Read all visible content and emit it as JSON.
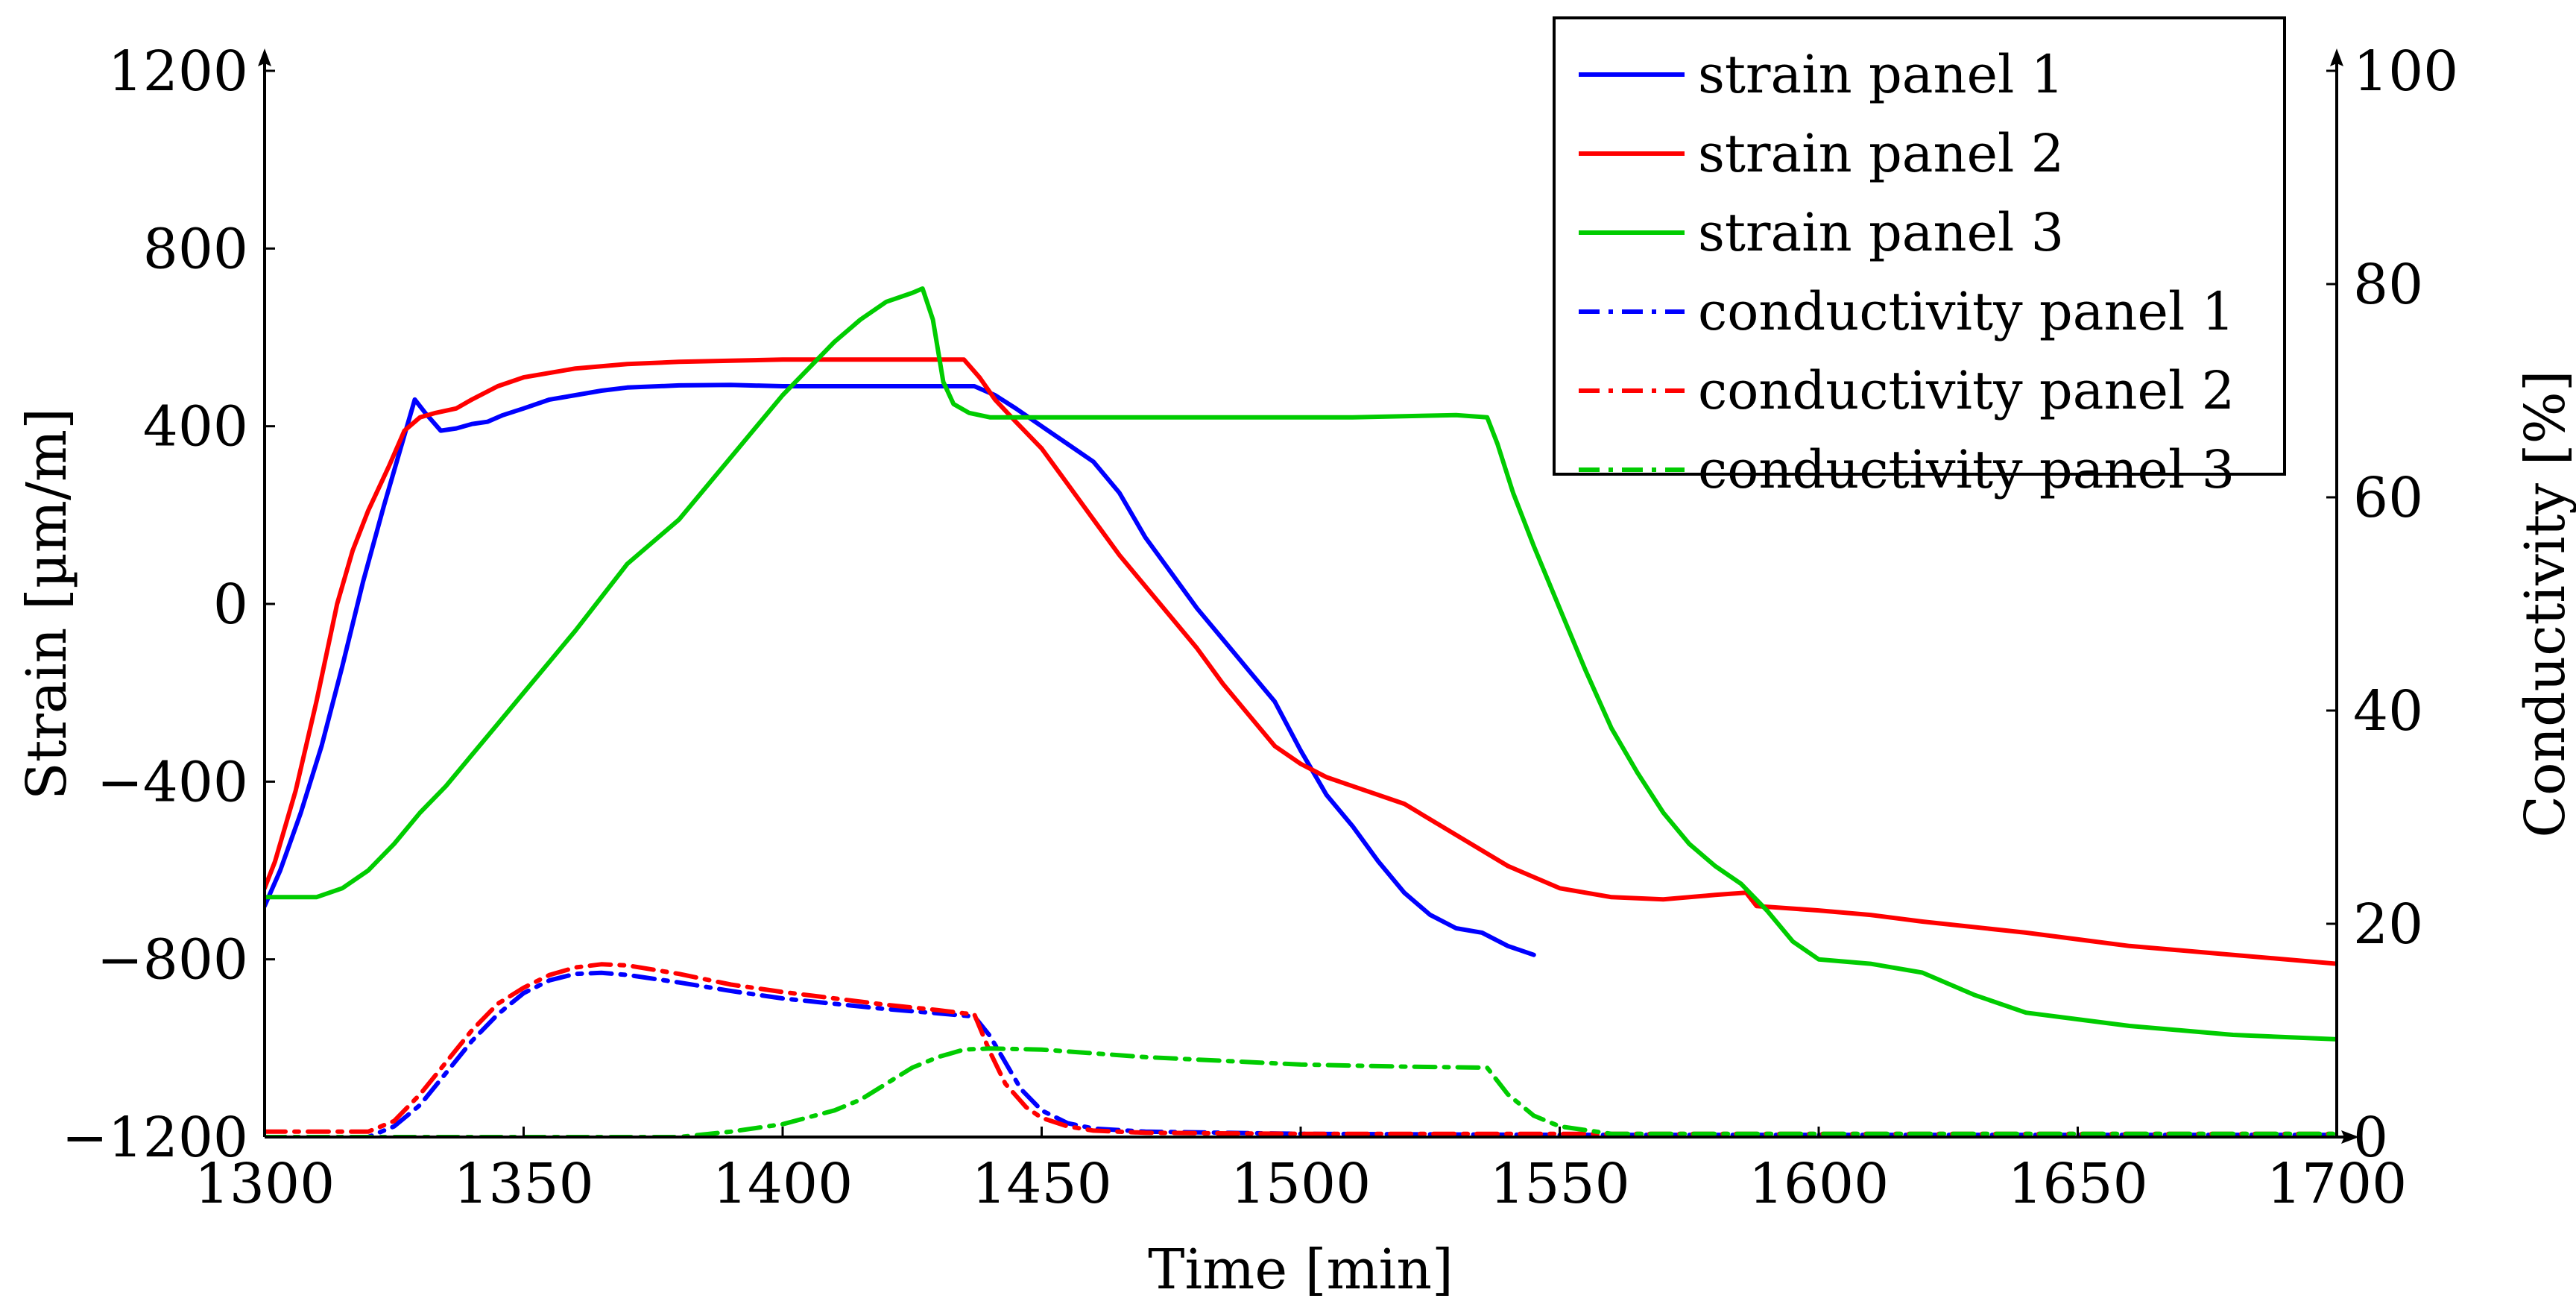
{
  "chart_data": {
    "type": "line",
    "title": "",
    "xlabel": "Time [min]",
    "ylabel": "Strain [µm/m]",
    "y2label": "Conductivity [%]",
    "xlim": [
      1300,
      1700
    ],
    "ylim": [
      -1200,
      1200
    ],
    "y2lim": [
      0,
      100
    ],
    "xticks": [
      1300,
      1350,
      1400,
      1450,
      1500,
      1550,
      1600,
      1650,
      1700
    ],
    "xtick_labels": [
      "1300",
      "1350",
      "1400",
      "1450",
      "1500",
      "1550",
      "1600",
      "1650",
      "1700"
    ],
    "yticks": [
      -1200,
      -800,
      -400,
      0,
      400,
      800,
      1200
    ],
    "ytick_labels": [
      "−1200",
      "−800",
      "−400",
      "0",
      "400",
      "800",
      "1200"
    ],
    "y2ticks": [
      0,
      20,
      40,
      60,
      80,
      100
    ],
    "y2tick_labels": [
      "0",
      "20",
      "40",
      "60",
      "80",
      "100"
    ],
    "legend_position": "top-right",
    "series": [
      {
        "name": "strain panel 1",
        "axis": "left",
        "color": "#0000ff",
        "style": "solid",
        "x": [
          1300,
          1303,
          1307,
          1311,
          1315,
          1319,
          1323,
          1326,
          1329,
          1331,
          1334,
          1337,
          1340,
          1343,
          1346,
          1350,
          1355,
          1360,
          1365,
          1370,
          1380,
          1390,
          1400,
          1410,
          1420,
          1430,
          1437,
          1441,
          1445,
          1450,
          1455,
          1460,
          1465,
          1470,
          1475,
          1480,
          1485,
          1490,
          1495,
          1500,
          1505,
          1510,
          1515,
          1520,
          1525,
          1530,
          1535,
          1540,
          1545
        ],
        "y": [
          -680,
          -600,
          -470,
          -320,
          -140,
          50,
          220,
          340,
          460,
          430,
          390,
          395,
          405,
          410,
          425,
          440,
          460,
          470,
          480,
          487,
          492,
          493,
          490,
          490,
          490,
          490,
          490,
          470,
          440,
          400,
          360,
          320,
          250,
          150,
          70,
          -10,
          -80,
          -150,
          -220,
          -330,
          -430,
          -500,
          -580,
          -650,
          -700,
          -730,
          -740,
          -770,
          -790
        ]
      },
      {
        "name": "strain panel 2",
        "axis": "left",
        "color": "#ff0000",
        "style": "solid",
        "x": [
          1300,
          1302,
          1306,
          1310,
          1314,
          1317,
          1320,
          1324,
          1327,
          1330,
          1333,
          1337,
          1340,
          1345,
          1350,
          1360,
          1370,
          1380,
          1400,
          1420,
          1435,
          1438,
          1441,
          1445,
          1450,
          1455,
          1460,
          1465,
          1470,
          1475,
          1480,
          1485,
          1490,
          1495,
          1500,
          1505,
          1510,
          1520,
          1530,
          1540,
          1550,
          1560,
          1570,
          1580,
          1586,
          1588,
          1600,
          1610,
          1620,
          1640,
          1660,
          1680,
          1700
        ],
        "y": [
          -640,
          -580,
          -420,
          -220,
          0,
          120,
          210,
          310,
          390,
          420,
          430,
          440,
          460,
          490,
          510,
          530,
          540,
          545,
          550,
          550,
          550,
          510,
          460,
          410,
          350,
          270,
          190,
          110,
          40,
          -30,
          -100,
          -180,
          -250,
          -320,
          -360,
          -390,
          -410,
          -450,
          -520,
          -590,
          -640,
          -660,
          -665,
          -655,
          -650,
          -680,
          -690,
          -700,
          -715,
          -740,
          -770,
          -790,
          -810
        ]
      },
      {
        "name": "strain panel 3",
        "axis": "left",
        "color": "#00cc00",
        "style": "solid",
        "x": [
          1300,
          1310,
          1315,
          1320,
          1325,
          1330,
          1335,
          1340,
          1345,
          1350,
          1355,
          1360,
          1370,
          1380,
          1390,
          1400,
          1410,
          1415,
          1420,
          1425,
          1427,
          1429,
          1431,
          1433,
          1436,
          1440,
          1450,
          1470,
          1490,
          1510,
          1530,
          1536,
          1538,
          1541,
          1545,
          1550,
          1555,
          1560,
          1565,
          1570,
          1575,
          1580,
          1585,
          1590,
          1595,
          1600,
          1610,
          1620,
          1630,
          1640,
          1660,
          1680,
          1700
        ],
        "y": [
          -660,
          -660,
          -640,
          -600,
          -540,
          -470,
          -410,
          -340,
          -270,
          -200,
          -130,
          -60,
          90,
          190,
          330,
          470,
          590,
          640,
          680,
          700,
          710,
          640,
          500,
          450,
          430,
          420,
          420,
          420,
          420,
          420,
          425,
          420,
          360,
          250,
          130,
          -10,
          -150,
          -280,
          -380,
          -470,
          -540,
          -590,
          -630,
          -690,
          -760,
          -800,
          -810,
          -830,
          -880,
          -920,
          -950,
          -970,
          -980
        ]
      },
      {
        "name": "conductivity panel 1",
        "axis": "right",
        "color": "#0000ff",
        "style": "dashdot",
        "x": [
          1300,
          1310,
          1320,
          1325,
          1330,
          1335,
          1340,
          1345,
          1350,
          1355,
          1360,
          1365,
          1370,
          1380,
          1390,
          1400,
          1410,
          1420,
          1430,
          1437,
          1440,
          1443,
          1446,
          1450,
          1455,
          1460,
          1470,
          1500,
          1550,
          1600,
          1650,
          1700
        ],
        "y": [
          0,
          0,
          0,
          1,
          3,
          6,
          9,
          11.5,
          13.5,
          14.7,
          15.3,
          15.4,
          15.2,
          14.5,
          13.7,
          13,
          12.5,
          12,
          11.6,
          11.3,
          9.5,
          7,
          4.5,
          2.5,
          1.3,
          0.8,
          0.5,
          0.3,
          0.2,
          0.2,
          0.2,
          0.2
        ]
      },
      {
        "name": "conductivity panel 2",
        "axis": "right",
        "color": "#ff0000",
        "style": "dashdot",
        "x": [
          1300,
          1310,
          1320,
          1325,
          1330,
          1335,
          1340,
          1345,
          1350,
          1355,
          1360,
          1365,
          1370,
          1380,
          1390,
          1400,
          1410,
          1420,
          1430,
          1435,
          1437,
          1440,
          1443,
          1447,
          1450,
          1455,
          1460,
          1470,
          1500,
          1550,
          1600,
          1650,
          1700
        ],
        "y": [
          0.5,
          0.5,
          0.5,
          1.5,
          4,
          7,
          10,
          12.5,
          14,
          15.2,
          15.9,
          16.2,
          16.1,
          15.3,
          14.3,
          13.6,
          13,
          12.4,
          11.9,
          11.6,
          11.5,
          8,
          5,
          2.8,
          1.8,
          1,
          0.6,
          0.4,
          0.3,
          0.3,
          0.3,
          0.3,
          0.3
        ]
      },
      {
        "name": "conductivity panel 3",
        "axis": "right",
        "color": "#00cc00",
        "style": "dashdot",
        "x": [
          1300,
          1350,
          1380,
          1390,
          1400,
          1410,
          1415,
          1420,
          1425,
          1430,
          1435,
          1440,
          1450,
          1470,
          1500,
          1520,
          1536,
          1540,
          1545,
          1550,
          1560,
          1600,
          1650,
          1700
        ],
        "y": [
          0,
          0,
          0,
          0.5,
          1.2,
          2.5,
          3.5,
          5,
          6.5,
          7.5,
          8.2,
          8.3,
          8.2,
          7.5,
          6.8,
          6.6,
          6.5,
          4,
          2,
          1,
          0.3,
          0.3,
          0.3,
          0.3
        ]
      }
    ]
  }
}
